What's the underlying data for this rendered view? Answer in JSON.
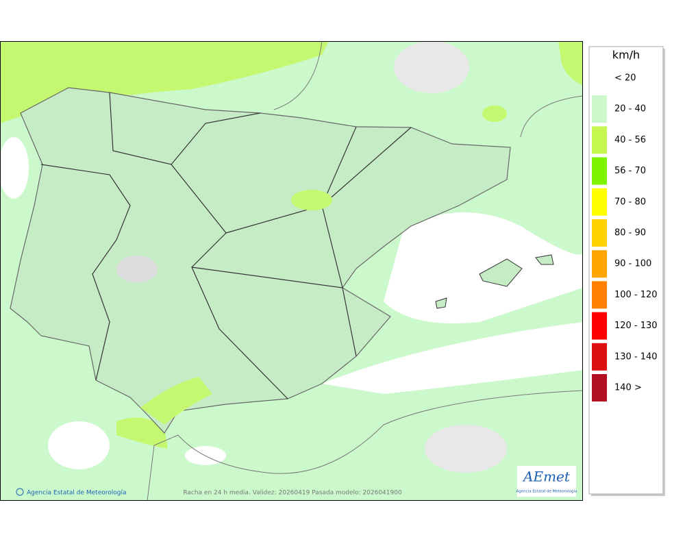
{
  "legend": {
    "title": "km/h",
    "items": [
      {
        "label": "< 20",
        "color": "#ffffff"
      },
      {
        "label": "20 - 40",
        "color": "#ccf9cc"
      },
      {
        "label": "40 - 56",
        "color": "#c4f850"
      },
      {
        "label": "56 - 70",
        "color": "#7ef400"
      },
      {
        "label": "70 - 80",
        "color": "#ffff00"
      },
      {
        "label": "80 - 90",
        "color": "#ffd000"
      },
      {
        "label": "90 - 100",
        "color": "#ffa500"
      },
      {
        "label": "100 - 120",
        "color": "#ff8000"
      },
      {
        "label": "120 - 130",
        "color": "#ff0000"
      },
      {
        "label": "130 - 140",
        "color": "#dd1010"
      },
      {
        "label": "140 >",
        "color": "#b01020"
      }
    ]
  },
  "footer": {
    "credit": "Agencia Estatal de Meteorología",
    "caption": "Racha en 24 h media. Validez: 20260419 Pasada modelo: 2026041900"
  },
  "logo": {
    "name": "AEmet",
    "subtitle": "Agencia Estatal de Meteorología"
  }
}
